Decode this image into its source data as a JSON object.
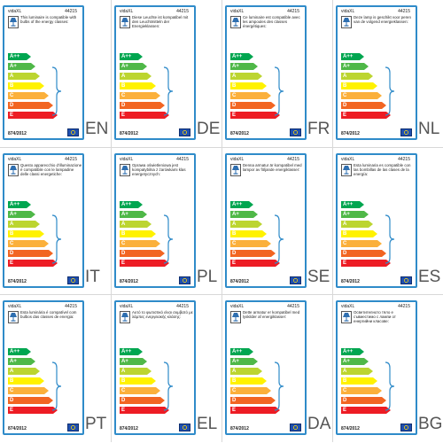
{
  "brand": "vidaXL",
  "model": "44215",
  "regulation": "874/2012",
  "energy_classes": [
    "A++",
    "A+",
    "A",
    "B",
    "C",
    "D",
    "E"
  ],
  "class_colors": [
    "#00a650",
    "#4fb848",
    "#bcd530",
    "#fff200",
    "#fbb03b",
    "#f26522",
    "#ed1c24"
  ],
  "border_color": "#2f8bc9",
  "lamp_icon": "table-lamp-icon",
  "flag_icon": "eu-flag-icon",
  "labels": [
    {
      "lang": "EN",
      "text": "This luminaire is compatible with bulbs of the energy classes:"
    },
    {
      "lang": "DE",
      "text": "Diese Leuchte ist kompatibel mit den Leuchtmitteln der Energieklassen:"
    },
    {
      "lang": "FR",
      "text": "Ce luminaire est compatible avec les ampoules des classes énergétiques:"
    },
    {
      "lang": "NL",
      "text": "Deze lamp is geschikt voor peren van de volgend energieklassen:"
    },
    {
      "lang": "IT",
      "text": "Questo apparecchio d'illuminazione è compatibile con le lampadine delle classi energetiche:"
    },
    {
      "lang": "PL",
      "text": "Oprawa oświetleniowa jest kompatybilna z żarówkami klas energetycznych:"
    },
    {
      "lang": "SE",
      "text": "Denna armatur är kompatibel med lampor av följande energiklasser:"
    },
    {
      "lang": "ES",
      "text": "Esta luminaria es compatible con las bombillas de las clases de la energía:"
    },
    {
      "lang": "PT",
      "text": "Esta luminária é compatível com bulbos das classes de energia:"
    },
    {
      "lang": "EL",
      "text": "Αυτό το φωτιστικό είναι συμβατό με λάμπες ενεργειακής κλάσης:"
    },
    {
      "lang": "DA",
      "text": "Dette armatur er kompatibel med lyskilder af energiklasser:"
    },
    {
      "lang": "BG",
      "text": "Осветителното тяло е съвместимо с лампи от енергийни класове:"
    }
  ]
}
